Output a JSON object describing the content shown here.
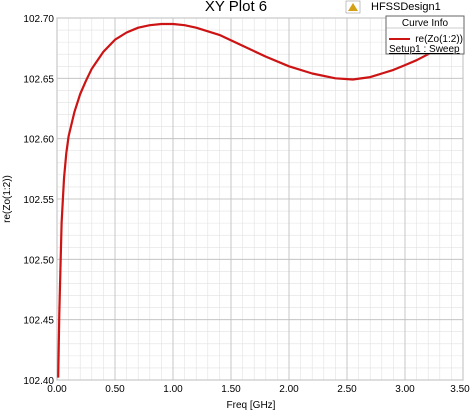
{
  "header": {
    "plot_title": "XY Plot 6",
    "design_name": "HFSSDesign1",
    "logo": "HFSS"
  },
  "legend": {
    "title": "Curve Info",
    "entries": [
      {
        "label": "re(Zo(1:2))",
        "sublabel": "Setup1 : Sweep",
        "color": "#cc1414"
      }
    ]
  },
  "chart_data": {
    "type": "line",
    "xlabel": "Freq [GHz]",
    "ylabel": "re(Zo(1:2))",
    "xlim": [
      0,
      3.5
    ],
    "ylim": [
      102.4,
      102.7
    ],
    "x_ticks": [
      "0.00",
      "0.50",
      "1.00",
      "1.50",
      "2.00",
      "2.50",
      "3.00",
      "3.50"
    ],
    "y_ticks": [
      "102.40",
      "102.45",
      "102.50",
      "102.55",
      "102.60",
      "102.65",
      "102.70"
    ],
    "grid": true,
    "legend_position": "top-right",
    "series": [
      {
        "name": "re(Zo(1:2))",
        "color": "#cc1414",
        "x": [
          0.01,
          0.02,
          0.04,
          0.06,
          0.08,
          0.1,
          0.15,
          0.2,
          0.25,
          0.3,
          0.4,
          0.5,
          0.6,
          0.7,
          0.8,
          0.9,
          1.0,
          1.1,
          1.2,
          1.4,
          1.6,
          1.8,
          2.0,
          2.2,
          2.4,
          2.55,
          2.7,
          2.8,
          2.9,
          3.0,
          3.1,
          3.2,
          3.3,
          3.4
        ],
        "y": [
          102.402,
          102.455,
          102.53,
          102.567,
          102.588,
          102.602,
          102.622,
          102.637,
          102.648,
          102.658,
          102.672,
          102.682,
          102.688,
          102.692,
          102.694,
          102.695,
          102.695,
          102.694,
          102.692,
          102.686,
          102.677,
          102.668,
          102.66,
          102.654,
          102.65,
          102.649,
          102.651,
          102.654,
          102.657,
          102.661,
          102.665,
          102.67,
          102.676,
          102.682
        ]
      }
    ]
  }
}
